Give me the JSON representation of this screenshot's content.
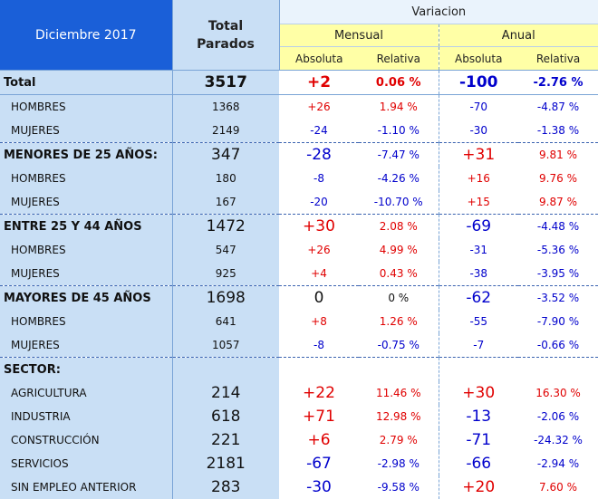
{
  "header": {
    "period": "Diciembre 2017",
    "total_line1": "Total",
    "total_line2": "Parados",
    "variacion": "Variacion",
    "mensual": "Mensual",
    "anual": "Anual",
    "absoluta": "Absoluta",
    "relativa": "Relativa"
  },
  "rows": [
    {
      "label": "Total",
      "total": "3517",
      "m_abs": "+2",
      "m_rel": "0.06 %",
      "a_abs": "-100",
      "a_rel": "-2.76 %"
    },
    {
      "label": "HOMBRES",
      "total": "1368",
      "m_abs": "+26",
      "m_rel": "1.94 %",
      "a_abs": "-70",
      "a_rel": "-4.87 %"
    },
    {
      "label": "MUJERES",
      "total": "2149",
      "m_abs": "-24",
      "m_rel": "-1.10 %",
      "a_abs": "-30",
      "a_rel": "-1.38 %"
    },
    {
      "label": "MENORES DE 25 AÑOS:",
      "total": "347",
      "m_abs": "-28",
      "m_rel": "-7.47 %",
      "a_abs": "+31",
      "a_rel": "9.81 %"
    },
    {
      "label": "HOMBRES",
      "total": "180",
      "m_abs": "-8",
      "m_rel": "-4.26 %",
      "a_abs": "+16",
      "a_rel": "9.76 %"
    },
    {
      "label": "MUJERES",
      "total": "167",
      "m_abs": "-20",
      "m_rel": "-10.70 %",
      "a_abs": "+15",
      "a_rel": "9.87 %"
    },
    {
      "label": "ENTRE 25 Y 44 AÑOS",
      "total": "1472",
      "m_abs": "+30",
      "m_rel": "2.08 %",
      "a_abs": "-69",
      "a_rel": "-4.48 %"
    },
    {
      "label": "HOMBRES",
      "total": "547",
      "m_abs": "+26",
      "m_rel": "4.99 %",
      "a_abs": "-31",
      "a_rel": "-5.36 %"
    },
    {
      "label": "MUJERES",
      "total": "925",
      "m_abs": "+4",
      "m_rel": "0.43 %",
      "a_abs": "-38",
      "a_rel": "-3.95 %"
    },
    {
      "label": "MAYORES DE 45 AÑOS",
      "total": "1698",
      "m_abs": "0",
      "m_rel": "0 %",
      "a_abs": "-62",
      "a_rel": "-3.52 %"
    },
    {
      "label": "HOMBRES",
      "total": "641",
      "m_abs": "+8",
      "m_rel": "1.26 %",
      "a_abs": "-55",
      "a_rel": "-7.90 %"
    },
    {
      "label": "MUJERES",
      "total": "1057",
      "m_abs": "-8",
      "m_rel": "-0.75 %",
      "a_abs": "-7",
      "a_rel": "-0.66 %"
    },
    {
      "label": "SECTOR:",
      "total": "",
      "m_abs": "",
      "m_rel": "",
      "a_abs": "",
      "a_rel": ""
    },
    {
      "label": "AGRICULTURA",
      "total": "214",
      "m_abs": "+22",
      "m_rel": "11.46 %",
      "a_abs": "+30",
      "a_rel": "16.30 %"
    },
    {
      "label": "INDUSTRIA",
      "total": "618",
      "m_abs": "+71",
      "m_rel": "12.98 %",
      "a_abs": "-13",
      "a_rel": "-2.06 %"
    },
    {
      "label": "CONSTRUCCIÓN",
      "total": "221",
      "m_abs": "+6",
      "m_rel": "2.79 %",
      "a_abs": "-71",
      "a_rel": "-24.32 %"
    },
    {
      "label": "SERVICIOS",
      "total": "2181",
      "m_abs": "-67",
      "m_rel": "-2.98 %",
      "a_abs": "-66",
      "a_rel": "-2.94 %"
    },
    {
      "label": "SIN EMPLEO ANTERIOR",
      "total": "283",
      "m_abs": "-30",
      "m_rel": "-9.58 %",
      "a_abs": "+20",
      "a_rel": "7.60 %"
    }
  ],
  "colors": {
    "positive": "#e00000",
    "negative": "#0000cc",
    "header_blue": "#1a5fd8",
    "yellow": "#ffffa6",
    "label_bg": "#c9dff5"
  }
}
